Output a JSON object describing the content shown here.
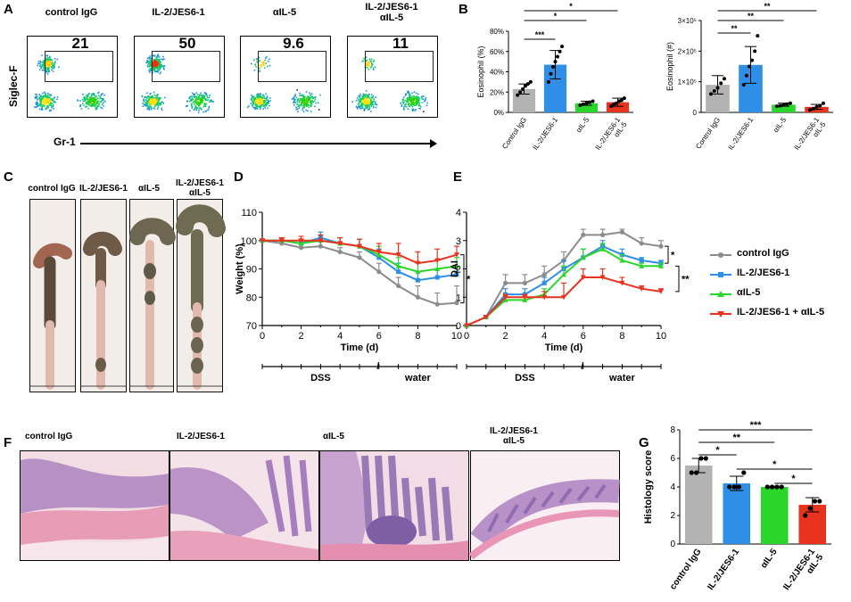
{
  "panels": {
    "A": "A",
    "B": "B",
    "C": "C",
    "D": "D",
    "E": "E",
    "F": "F",
    "G": "G"
  },
  "flow": {
    "ylabel": "Siglec-F",
    "xlabel": "Gr-1",
    "plots": [
      {
        "title": "control IgG",
        "percent": "21"
      },
      {
        "title": "IL-2/JES6-1",
        "percent": "50"
      },
      {
        "title": "αIL-5",
        "percent": "9.6"
      },
      {
        "title_line1": "IL-2/JES6-1",
        "title_line2": "αIL-5",
        "percent": "11"
      }
    ]
  },
  "colon": {
    "titles": [
      {
        "line1": "control IgG"
      },
      {
        "line1": "IL-2/JES6-1"
      },
      {
        "line1": "αIL-5"
      },
      {
        "line1": "IL-2/JES6-1",
        "line2": "αIL-5"
      }
    ]
  },
  "histology": {
    "titles": [
      {
        "line1": "control IgG"
      },
      {
        "line1": "IL-2/JES6-1"
      },
      {
        "line1": "αIL-5"
      },
      {
        "line1": "IL-2/JES6-1",
        "line2": "αIL-5"
      }
    ]
  },
  "legend": {
    "items": [
      {
        "label": "control IgG",
        "color": "#8c8c8c"
      },
      {
        "label": "IL-2/JES6-1",
        "color": "#2f8fe6"
      },
      {
        "label": "αIL-5",
        "color": "#2bd62b"
      },
      {
        "label": "IL-2/JES6-1 + αIL-5",
        "color": "#e8331f"
      }
    ]
  },
  "phases": {
    "dss": "DSS",
    "water": "water"
  },
  "chart_data": [
    {
      "id": "B1",
      "type": "bar",
      "title": "",
      "ylabel": "Eosinophil (%)",
      "ylim": [
        0,
        80
      ],
      "yticks": [
        "0%",
        "20%",
        "40%",
        "60%",
        "80%"
      ],
      "ytick_values": [
        0,
        20,
        40,
        60,
        80
      ],
      "categories": [
        {
          "line1": "Control IgG"
        },
        {
          "line1": "IL-2/JES6-1"
        },
        {
          "line1": "αIL-5"
        },
        {
          "line1": "IL-2/JES6-1",
          "line2": "αIL-5"
        }
      ],
      "values": [
        23,
        47,
        9,
        10
      ],
      "errors": [
        5,
        14,
        2,
        4
      ],
      "colors": [
        "#b3b3b3",
        "#2f8fe6",
        "#2bd62b",
        "#e8331f"
      ],
      "points": [
        [
          17,
          20,
          23,
          26,
          28,
          30
        ],
        [
          30,
          38,
          45,
          50,
          55,
          60,
          65
        ],
        [
          7,
          8,
          9,
          10,
          11
        ],
        [
          6,
          8,
          9,
          11,
          12,
          14
        ]
      ],
      "significance": [
        {
          "from": 0,
          "to": 1,
          "label": "***"
        },
        {
          "from": 0,
          "to": 2,
          "label": "*"
        },
        {
          "from": 0,
          "to": 3,
          "label": "*"
        }
      ]
    },
    {
      "id": "B2",
      "type": "bar",
      "title": "",
      "ylabel": "Eosinophil (#)",
      "ylim": [
        0,
        300000
      ],
      "yticks": [
        "0",
        "1×10⁵",
        "2×10⁵",
        "3×10⁵"
      ],
      "ytick_values": [
        0,
        100000,
        200000,
        300000
      ],
      "categories": [
        {
          "line1": "Control IgG"
        },
        {
          "line1": "IL-2/JES6-1"
        },
        {
          "line1": "αIL-5"
        },
        {
          "line1": "IL-2/JES6-1",
          "line2": "αIL-5"
        }
      ],
      "values": [
        90000,
        155000,
        25000,
        18000
      ],
      "errors": [
        30000,
        60000,
        5000,
        8000
      ],
      "colors": [
        "#b3b3b3",
        "#2f8fe6",
        "#2bd62b",
        "#e8331f"
      ],
      "points": [
        [
          60000,
          70000,
          80000,
          95000,
          110000
        ],
        [
          90000,
          120000,
          150000,
          170000,
          200000,
          250000
        ],
        [
          20000,
          22000,
          25000,
          27000,
          30000
        ],
        [
          8000,
          12000,
          18000,
          22000,
          30000
        ]
      ],
      "significance": [
        {
          "from": 0,
          "to": 1,
          "label": "**"
        },
        {
          "from": 0,
          "to": 2,
          "label": "**"
        },
        {
          "from": 0,
          "to": 3,
          "label": "**"
        }
      ]
    },
    {
      "id": "D",
      "type": "line",
      "title": "",
      "xlabel": "Time (d)",
      "ylabel": "Weight (%)",
      "xlim": [
        0,
        10
      ],
      "ylim": [
        70,
        110
      ],
      "xticks": [
        0,
        2,
        4,
        6,
        8,
        10
      ],
      "yticks": [
        70,
        80,
        90,
        100,
        110
      ],
      "x": [
        0,
        1,
        2,
        3,
        4,
        5,
        6,
        7,
        8,
        9,
        10
      ],
      "series": [
        {
          "name": "control IgG",
          "color": "#8c8c8c",
          "values": [
            100,
            99,
            97.5,
            98,
            96,
            94,
            89,
            84,
            80,
            77.5,
            78
          ],
          "errors": [
            0.5,
            1,
            1,
            1.5,
            1.5,
            2,
            3,
            3,
            4,
            4,
            6
          ]
        },
        {
          "name": "IL-2/JES6-1",
          "color": "#2f8fe6",
          "values": [
            100,
            100,
            99,
            101,
            99,
            98,
            94,
            89,
            86,
            87,
            88
          ],
          "errors": [
            0.5,
            1,
            1.5,
            2,
            2,
            2.5,
            3,
            3,
            3,
            3,
            3
          ]
        },
        {
          "name": "αIL-5",
          "color": "#2bd62b",
          "values": [
            100,
            100,
            99,
            100,
            99,
            98,
            95,
            91,
            89,
            90,
            91
          ],
          "errors": [
            0.5,
            1,
            1.5,
            2,
            2,
            2.5,
            3,
            3,
            3,
            3,
            3
          ]
        },
        {
          "name": "IL-2/JES6-1 + αIL-5",
          "color": "#e8331f",
          "values": [
            100,
            100,
            100,
            100,
            99,
            98,
            96,
            95,
            92,
            93,
            95
          ],
          "errors": [
            0.5,
            1,
            1.5,
            2,
            2,
            2.5,
            3,
            4,
            4,
            4,
            3
          ]
        }
      ],
      "significance": [
        {
          "label": "*"
        }
      ]
    },
    {
      "id": "E",
      "type": "line",
      "title": "",
      "xlabel": "Time (d)",
      "ylabel": "DAI",
      "xlim": [
        0,
        10
      ],
      "ylim": [
        0,
        4
      ],
      "xticks": [
        0,
        2,
        4,
        6,
        8,
        10
      ],
      "yticks": [
        0,
        1,
        2,
        3,
        4
      ],
      "x": [
        0,
        1,
        2,
        3,
        4,
        5,
        6,
        7,
        8,
        9,
        10
      ],
      "series": [
        {
          "name": "control IgG",
          "color": "#8c8c8c",
          "values": [
            0,
            0.3,
            1.5,
            1.5,
            1.8,
            2.3,
            3.2,
            3.2,
            3.3,
            2.9,
            2.8
          ],
          "errors": [
            0,
            0.05,
            0.3,
            0.3,
            0.3,
            0.3,
            0.2,
            0.2,
            0.1,
            0.2,
            0.2
          ]
        },
        {
          "name": "IL-2/JES6-1",
          "color": "#2f8fe6",
          "values": [
            0,
            0.3,
            1.1,
            1.1,
            1.5,
            2.0,
            2.4,
            2.8,
            2.5,
            2.3,
            2.2
          ],
          "errors": [
            0,
            0.05,
            0.2,
            0.2,
            0.2,
            0.3,
            0.3,
            0.2,
            0.2,
            0.1,
            0.1
          ]
        },
        {
          "name": "αIL-5",
          "color": "#2bd62b",
          "values": [
            0,
            0.3,
            0.9,
            0.9,
            1.1,
            1.8,
            2.4,
            2.7,
            2.3,
            2.1,
            2.1
          ],
          "errors": [
            0,
            0.05,
            0.2,
            0.2,
            0.2,
            0.3,
            0.3,
            0.2,
            0.2,
            0.1,
            0.1
          ]
        },
        {
          "name": "IL-2/JES6-1 + αIL-5",
          "color": "#e8331f",
          "values": [
            0,
            0.3,
            1.0,
            1.0,
            1.0,
            1.0,
            1.7,
            1.7,
            1.5,
            1.3,
            1.2
          ],
          "errors": [
            0,
            0.05,
            0.1,
            0.1,
            0.2,
            0.5,
            0.3,
            0.3,
            0.2,
            0.1,
            0.1
          ]
        }
      ],
      "significance": [
        {
          "label": "*"
        },
        {
          "label": "**"
        }
      ]
    },
    {
      "id": "G",
      "type": "bar",
      "title": "",
      "ylabel": "Histology score",
      "ylim": [
        0,
        8
      ],
      "yticks": [
        "0",
        "2",
        "4",
        "6",
        "8"
      ],
      "ytick_values": [
        0,
        2,
        4,
        6,
        8
      ],
      "categories": [
        {
          "line1": "control IgG"
        },
        {
          "line1": "IL-2/JES6-1"
        },
        {
          "line1": "αIL-5"
        },
        {
          "line1": "IL-2/JES6-1",
          "line2": "αIL-5"
        }
      ],
      "values": [
        5.5,
        4.25,
        4.0,
        2.75
      ],
      "errors": [
        0.5,
        0.5,
        0.05,
        0.5
      ],
      "colors": [
        "#b3b3b3",
        "#2f8fe6",
        "#2bd62b",
        "#e8331f"
      ],
      "points": [
        [
          5,
          5,
          6,
          6
        ],
        [
          4,
          4,
          4,
          5
        ],
        [
          4,
          4,
          4,
          4
        ],
        [
          2,
          2.5,
          3,
          3
        ]
      ],
      "significance": [
        {
          "from": 0,
          "to": 3,
          "label": "***"
        },
        {
          "from": 0,
          "to": 2,
          "label": "**"
        },
        {
          "from": 0,
          "to": 1,
          "label": "*"
        },
        {
          "from": 1,
          "to": 3,
          "label": "*"
        },
        {
          "from": 2,
          "to": 3,
          "label": "*"
        }
      ]
    }
  ]
}
